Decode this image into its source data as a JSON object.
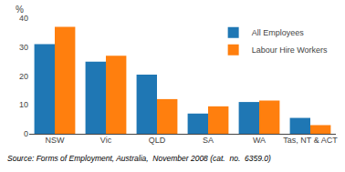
{
  "chart_data": {
    "type": "bar",
    "categories": [
      "NSW",
      "Vic",
      "QLD",
      "SA",
      "WA",
      "Tas, NT & ACT"
    ],
    "series": [
      {
        "name": "All Employees",
        "values": [
          31.0,
          25.0,
          20.5,
          7.0,
          11.0,
          5.5
        ]
      },
      {
        "name": "Labour Hire Workers",
        "values": [
          37.0,
          27.0,
          12.0,
          9.5,
          11.5,
          3.0
        ]
      }
    ],
    "ylabel": "%",
    "ylim": [
      0,
      40
    ],
    "yticks": [
      0,
      10,
      20,
      30,
      40
    ],
    "grid": false,
    "legend": "upper right",
    "annotations": [
      "Source: Forms of Employment, Australia,  November 2008 (cat.  no.  6359.0)"
    ]
  }
}
